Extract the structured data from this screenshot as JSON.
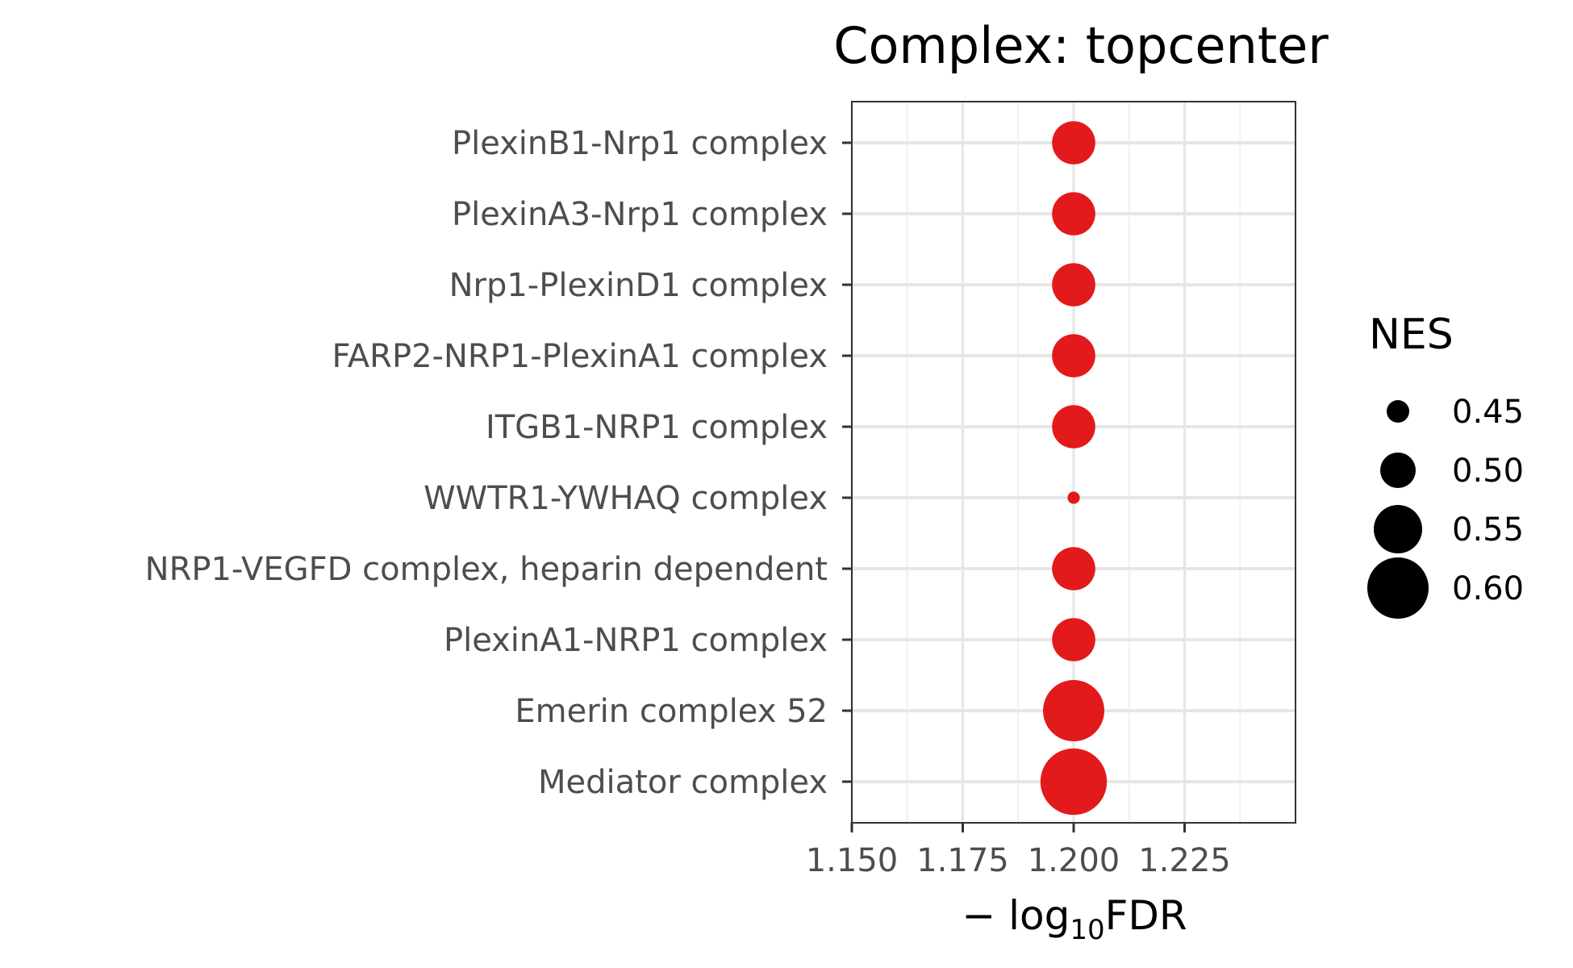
{
  "chart_data": {
    "type": "scatter",
    "title": "Complex: topcenter",
    "xlabel_prefix": "− log",
    "xlabel_sub": "10",
    "xlabel_suffix": "FDR",
    "ylabel": "",
    "xlim": [
      1.15,
      1.25
    ],
    "x_ticks": [
      1.15,
      1.175,
      1.2,
      1.225
    ],
    "x_tick_labels": [
      "1.150",
      "1.175",
      "1.200",
      "1.225"
    ],
    "categories": [
      "PlexinB1-Nrp1 complex",
      "PlexinA3-Nrp1 complex",
      "Nrp1-PlexinD1 complex",
      "FARP2-NRP1-PlexinA1 complex",
      "ITGB1-NRP1 complex",
      "WWTR1-YWHAQ complex",
      "NRP1-VEGFD complex, heparin dependent",
      "PlexinA1-NRP1 complex",
      "Emerin complex 52",
      "Mediator complex"
    ],
    "points": [
      {
        "category": "PlexinB1-Nrp1 complex",
        "x": 1.2,
        "nes": 0.53
      },
      {
        "category": "PlexinA3-Nrp1 complex",
        "x": 1.2,
        "nes": 0.53
      },
      {
        "category": "Nrp1-PlexinD1 complex",
        "x": 1.2,
        "nes": 0.53
      },
      {
        "category": "FARP2-NRP1-PlexinA1 complex",
        "x": 1.2,
        "nes": 0.53
      },
      {
        "category": "ITGB1-NRP1 complex",
        "x": 1.2,
        "nes": 0.53
      },
      {
        "category": "WWTR1-YWHAQ complex",
        "x": 1.2,
        "nes": 0.41
      },
      {
        "category": "NRP1-VEGFD complex, heparin dependent",
        "x": 1.2,
        "nes": 0.53
      },
      {
        "category": "PlexinA1-NRP1 complex",
        "x": 1.2,
        "nes": 0.53
      },
      {
        "category": "Emerin complex 52",
        "x": 1.2,
        "nes": 0.6
      },
      {
        "category": "Mediator complex",
        "x": 1.2,
        "nes": 0.62
      }
    ],
    "point_color": "#e31a1c",
    "legend": {
      "title": "NES",
      "position": "right",
      "entries": [
        {
          "label": "0.45",
          "nes": 0.45
        },
        {
          "label": "0.50",
          "nes": 0.5
        },
        {
          "label": "0.55",
          "nes": 0.55
        },
        {
          "label": "0.60",
          "nes": 0.6
        }
      ]
    },
    "grid": true
  }
}
